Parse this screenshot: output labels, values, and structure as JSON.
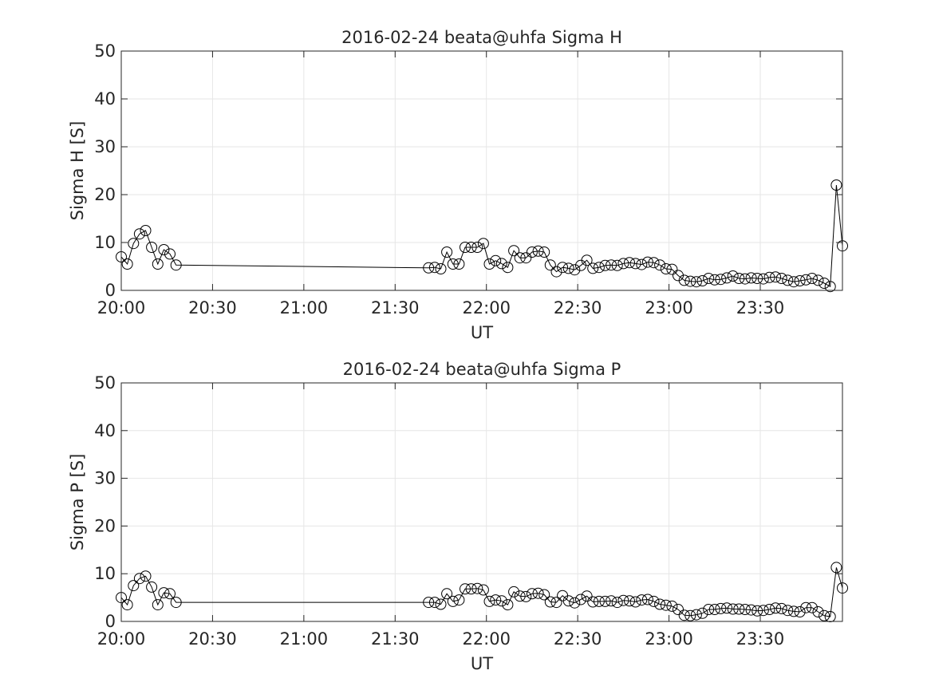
{
  "chart_data": [
    {
      "type": "line",
      "title": "2016-02-24  beata@uhfa Sigma H",
      "xlabel": "UT",
      "ylabel": "Sigma H [S]",
      "xlim": [
        0,
        237
      ],
      "ylim": [
        0,
        50
      ],
      "xticks": [
        0,
        30,
        60,
        90,
        120,
        150,
        180,
        210
      ],
      "xtick_labels": [
        "20:00",
        "20:30",
        "21:00",
        "21:30",
        "22:00",
        "22:30",
        "23:00",
        "23:30"
      ],
      "yticks": [
        0,
        10,
        20,
        30,
        40,
        50
      ],
      "ytick_labels": [
        "0",
        "10",
        "20",
        "30",
        "40",
        "50"
      ],
      "grid": true,
      "marker": "open-circle",
      "line_color": "#000000",
      "series": [
        {
          "x": [
            0,
            2,
            4,
            6,
            8,
            10,
            12,
            14,
            16,
            18,
            101,
            103,
            105,
            107,
            109,
            111,
            113,
            115,
            117,
            119,
            121,
            123,
            125,
            127,
            129,
            131,
            133,
            135,
            137,
            139,
            141,
            143,
            145,
            147,
            149,
            151,
            153,
            155,
            157,
            159,
            161,
            163,
            165,
            167,
            169,
            171,
            173,
            175,
            177,
            179,
            181,
            183,
            185,
            187,
            189,
            191,
            193,
            195,
            197,
            199,
            201,
            203,
            205,
            207,
            209,
            211,
            213,
            215,
            217,
            219,
            221,
            223,
            225,
            227,
            229,
            231,
            233,
            235,
            237
          ],
          "values": [
            7,
            5.5,
            9.8,
            11.8,
            12.5,
            9,
            5.5,
            8.5,
            7.6,
            5.3,
            4.7,
            4.8,
            4.5,
            8,
            5.5,
            5.5,
            9,
            9,
            9,
            9.8,
            5.5,
            6.2,
            5.6,
            4.8,
            8.3,
            6.8,
            6.8,
            8,
            8.2,
            8,
            5.3,
            3.9,
            4.8,
            4.6,
            4.3,
            5.2,
            6.3,
            4.6,
            4.8,
            5.2,
            5.3,
            5.2,
            5.6,
            5.8,
            5.6,
            5.4,
            5.9,
            5.8,
            5.3,
            4.5,
            4.4,
            3.1,
            2.1,
            1.9,
            1.8,
            2,
            2.5,
            2.2,
            2.3,
            2.6,
            3,
            2.5,
            2.4,
            2.6,
            2.5,
            2.4,
            2.7,
            2.8,
            2.5,
            2.1,
            1.8,
            2,
            2.2,
            2.5,
            2.1,
            1.5,
            0.8,
            22,
            9.3
          ]
        }
      ]
    },
    {
      "type": "line",
      "title": "2016-02-24  beata@uhfa Sigma P",
      "xlabel": "UT",
      "ylabel": "Sigma P [S]",
      "xlim": [
        0,
        237
      ],
      "ylim": [
        0,
        50
      ],
      "xticks": [
        0,
        30,
        60,
        90,
        120,
        150,
        180,
        210
      ],
      "xtick_labels": [
        "20:00",
        "20:30",
        "21:00",
        "21:30",
        "22:00",
        "22:30",
        "23:00",
        "23:30"
      ],
      "yticks": [
        0,
        10,
        20,
        30,
        40,
        50
      ],
      "ytick_labels": [
        "0",
        "10",
        "20",
        "30",
        "40",
        "50"
      ],
      "grid": true,
      "marker": "open-circle",
      "line_color": "#000000",
      "series": [
        {
          "x": [
            0,
            2,
            4,
            6,
            8,
            10,
            12,
            14,
            16,
            18,
            101,
            103,
            105,
            107,
            109,
            111,
            113,
            115,
            117,
            119,
            121,
            123,
            125,
            127,
            129,
            131,
            133,
            135,
            137,
            139,
            141,
            143,
            145,
            147,
            149,
            151,
            153,
            155,
            157,
            159,
            161,
            163,
            165,
            167,
            169,
            171,
            173,
            175,
            177,
            179,
            181,
            183,
            185,
            187,
            189,
            191,
            193,
            195,
            197,
            199,
            201,
            203,
            205,
            207,
            209,
            211,
            213,
            215,
            217,
            219,
            221,
            223,
            225,
            227,
            229,
            231,
            233,
            235,
            237
          ],
          "values": [
            5,
            3.5,
            7.5,
            9,
            9.5,
            7.2,
            3.5,
            6,
            5.8,
            4,
            4,
            4,
            3.6,
            5.8,
            4.2,
            4.5,
            6.8,
            6.8,
            6.9,
            6.6,
            4.2,
            4.5,
            4.3,
            3.5,
            6.2,
            5.3,
            5.2,
            5.8,
            5.9,
            5.6,
            4.1,
            4,
            5.4,
            4.3,
            3.9,
            4.6,
            5.3,
            4.1,
            4.2,
            4.2,
            4.3,
            4,
            4.4,
            4.3,
            4.1,
            4.5,
            4.6,
            4.2,
            3.6,
            3.4,
            3.2,
            2.5,
            1.3,
            1.2,
            1.4,
            1.7,
            2.5,
            2.5,
            2.7,
            2.8,
            2.6,
            2.6,
            2.5,
            2.4,
            2.2,
            2.3,
            2.5,
            2.8,
            2.7,
            2.3,
            2.1,
            2,
            2.9,
            2.9,
            2,
            1.2,
            1,
            11.3,
            7
          ]
        }
      ]
    }
  ]
}
